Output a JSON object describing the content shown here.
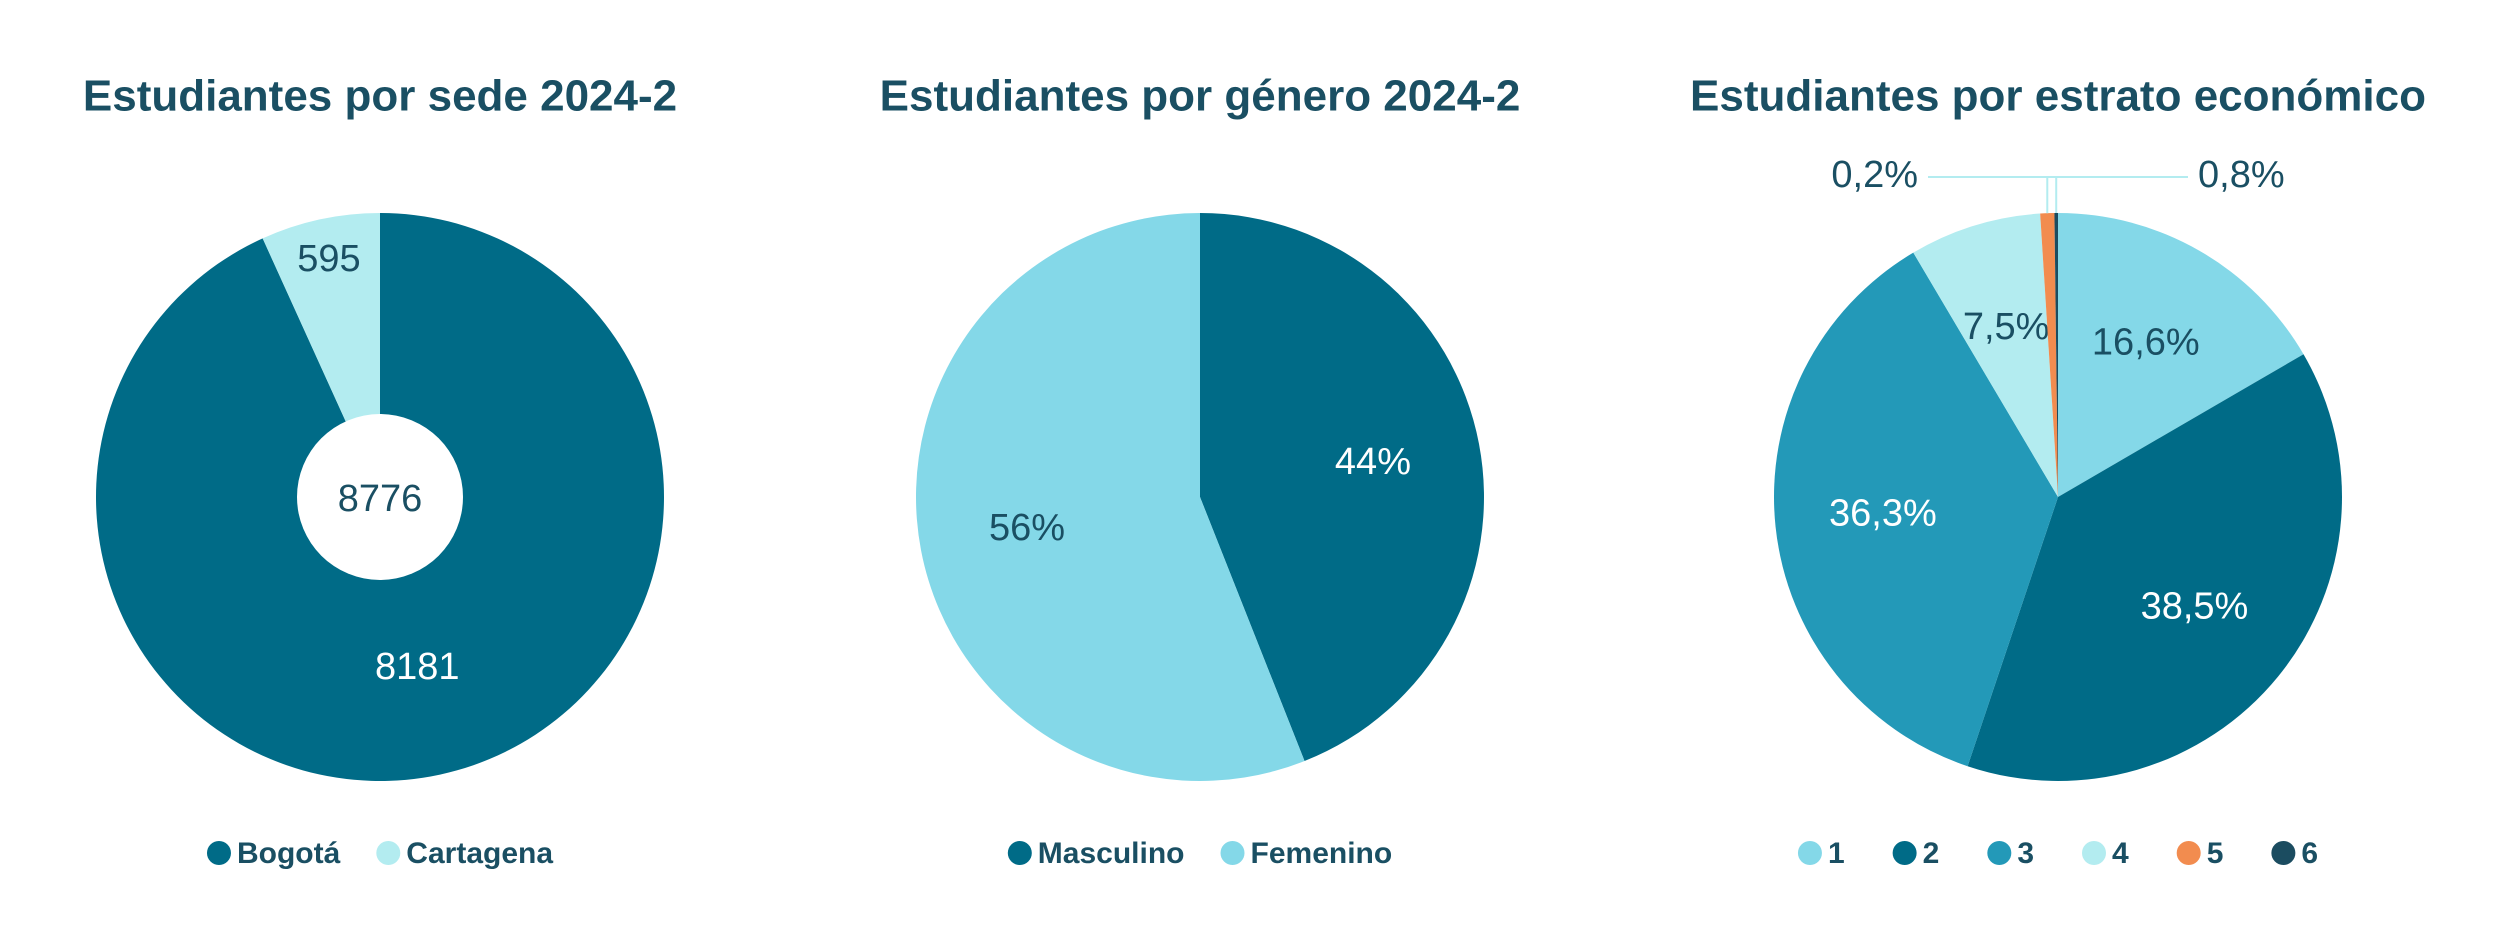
{
  "chart_data": [
    {
      "type": "pie",
      "title": "Estudiantes por sede 2024-2",
      "categories": [
        "Bogotá",
        "Cartagena"
      ],
      "values": [
        8181,
        595
      ],
      "colors": [
        "#006b87",
        "#b3ecf0"
      ],
      "total": 8776,
      "legend": "bottom"
    },
    {
      "type": "pie",
      "title": "Estudiantes por género 2024-2",
      "categories": [
        "Masculino",
        "Femenino"
      ],
      "values": [
        44,
        56
      ],
      "value_labels": [
        "44%",
        "56%"
      ],
      "colors": [
        "#006b87",
        "#84d8e8"
      ],
      "legend": "bottom"
    },
    {
      "type": "pie",
      "title": "Estudiantes por estrato económico",
      "categories": [
        "1",
        "2",
        "3",
        "4",
        "5",
        "6"
      ],
      "values": [
        16.6,
        38.5,
        36.3,
        7.5,
        0.8,
        0.2
      ],
      "value_labels": [
        "16,6%",
        "38,5%",
        "36,3%",
        "7,5%",
        "0,8%",
        "0,2%"
      ],
      "colors": [
        "#84d8e8",
        "#006b87",
        "#2399b8",
        "#b3ecf0",
        "#f28c4f",
        "#1b4c60"
      ],
      "legend": "bottom"
    }
  ]
}
